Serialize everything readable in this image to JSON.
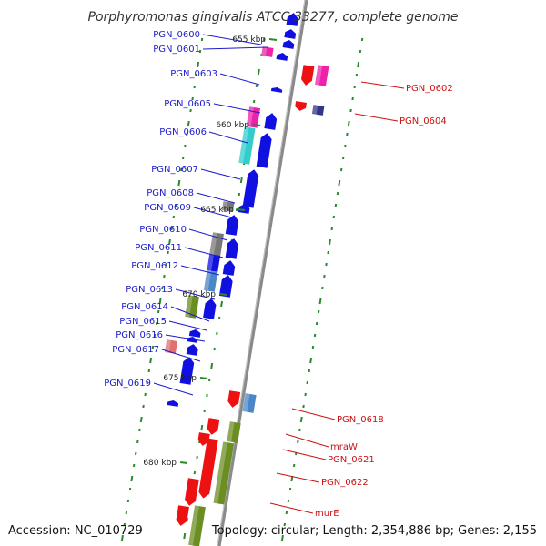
{
  "title": "Porphyromonas gingivalis ATCC 33277, complete genome",
  "footer": {
    "accession": "Accession: NC_010729",
    "topology": "Topology: circular; Length: 2,354,886 bp; Genes: 2,155"
  },
  "colors": {
    "backbone": "#8a8a8a",
    "left_label": "#1a1acc",
    "right_label": "#cc1111",
    "tick": "#2a8a2a",
    "cds": "#1010e0",
    "cds_red": "#ee1111",
    "pink": "#ee22aa",
    "teal": "#33cccc",
    "olive": "#6b8e23",
    "steel": "#4a86c8",
    "gray": "#777777",
    "navy": "#333388",
    "salmon": "#e07070"
  },
  "kbp_marks": [
    "655 kbp",
    "660 kbp",
    "665 kbp",
    "670 kbp",
    "675 kbp",
    "680 kbp"
  ],
  "genes_left": [
    "PGN_0600",
    "PGN_0601",
    "PGN_0603",
    "PGN_0605",
    "PGN_0606",
    "PGN_0607",
    "PGN_0608",
    "PGN_0609",
    "PGN_0610",
    "PGN_0611",
    "PGN_0612",
    "PGN_0613",
    "PGN_0614",
    "PGN_0615",
    "PGN_0616",
    "PGN_0617",
    "PGN_0619"
  ],
  "genes_right": [
    "PGN_0602",
    "PGN_0604",
    "PGN_0618",
    "mraW",
    "PGN_0621",
    "PGN_0622",
    "murE"
  ]
}
